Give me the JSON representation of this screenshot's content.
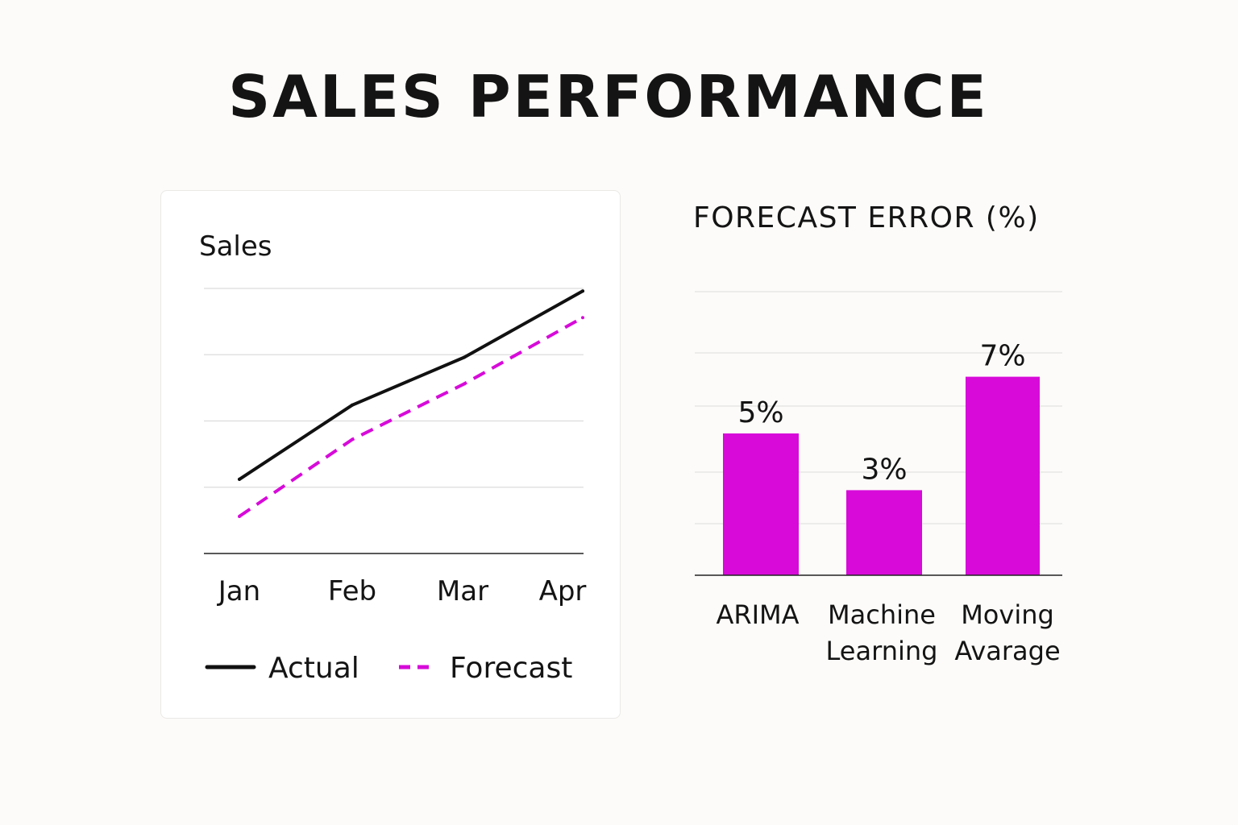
{
  "page": {
    "title": "SALES PERFORMANCE"
  },
  "colors": {
    "actual": "#111111",
    "accent": "#d70ad9",
    "grid": "#dcdcdc",
    "axis": "#222222",
    "text": "#141414"
  },
  "chart_data": [
    {
      "type": "line",
      "title": "Sales",
      "xlabel": "",
      "ylabel": "",
      "categories": [
        "Jan",
        "Feb",
        "Mar",
        "Apr"
      ],
      "ylim": [
        0,
        100
      ],
      "grid": true,
      "legend": "bottom",
      "series": [
        {
          "name": "Actual",
          "values": [
            28,
            56,
            74,
            99
          ],
          "style": "solid",
          "color": "#111111"
        },
        {
          "name": "Forecast",
          "values": [
            14,
            43,
            64,
            89
          ],
          "style": "dashed",
          "color": "#d70ad9"
        }
      ]
    },
    {
      "type": "bar",
      "title": "FORECAST ERROR (%)",
      "xlabel": "",
      "ylabel": "",
      "categories": [
        "ARIMA",
        "Machine Learning",
        "Moving Avarage"
      ],
      "category_lines": [
        [
          "ARIMA"
        ],
        [
          "Machine",
          "Learning"
        ],
        [
          "Moving",
          "Avarage"
        ]
      ],
      "values": [
        5,
        3,
        7
      ],
      "data_labels": [
        "5%",
        "3%",
        "7%"
      ],
      "ylim": [
        0,
        10
      ],
      "grid": true,
      "color": "#d70ad9"
    }
  ]
}
